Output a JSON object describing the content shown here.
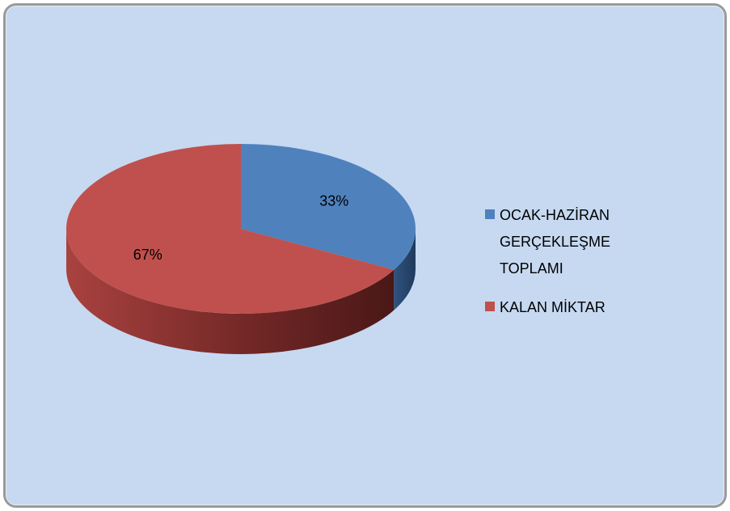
{
  "chart_data": {
    "type": "pie",
    "categories": [
      "OCAK-HAZİRAN GERÇEKLEŞME TOPLAMI",
      "KALAN MİKTAR"
    ],
    "values": [
      33,
      67
    ],
    "value_labels": [
      "33%",
      "67%"
    ],
    "colors": [
      "#4f81bd",
      "#c0504d"
    ],
    "legend": "right"
  }
}
